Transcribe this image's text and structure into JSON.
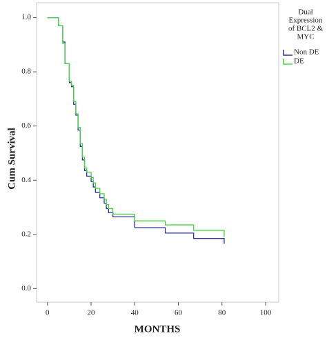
{
  "chart_data": {
    "type": "step",
    "y_label": "Cum Survival",
    "x_label": "MONTHS",
    "legend_title": [
      "Dual",
      "Expression",
      "of BCL2 &",
      "MYC"
    ],
    "xlim": [
      -5,
      106
    ],
    "ylim": [
      -0.05,
      1.055
    ],
    "xticks": [
      0,
      20,
      40,
      60,
      80,
      100
    ],
    "yticks": [
      {
        "value": 0,
        "label": "0.0"
      },
      0.2,
      0.4,
      0.6,
      0.8,
      {
        "value": 1,
        "label": "1.0"
      }
    ],
    "series": [
      {
        "name": "Non DE",
        "color": "#2e2ea6",
        "x": [
          0,
          5,
          7,
          8,
          10,
          11,
          12,
          13,
          14,
          15,
          16,
          17,
          18,
          20,
          21,
          22,
          24,
          26,
          27,
          28,
          30,
          40,
          54,
          67,
          81
        ],
        "values": [
          1.0,
          0.97,
          0.91,
          0.83,
          0.76,
          0.745,
          0.68,
          0.64,
          0.585,
          0.525,
          0.475,
          0.435,
          0.415,
          0.395,
          0.375,
          0.355,
          0.335,
          0.315,
          0.295,
          0.28,
          0.265,
          0.225,
          0.205,
          0.185,
          0.165
        ]
      },
      {
        "name": "DE",
        "color": "#46d246",
        "x": [
          0,
          4,
          5,
          7,
          8,
          10,
          11,
          12,
          13,
          14,
          15,
          16,
          17,
          18,
          20,
          21,
          22,
          24,
          26,
          27,
          28,
          30,
          40,
          54,
          67,
          81
        ],
        "values": [
          1.0,
          1.0,
          0.97,
          0.905,
          0.83,
          0.765,
          0.75,
          0.69,
          0.645,
          0.595,
          0.535,
          0.485,
          0.445,
          0.43,
          0.41,
          0.39,
          0.37,
          0.35,
          0.33,
          0.31,
          0.295,
          0.275,
          0.25,
          0.235,
          0.215,
          0.19
        ]
      }
    ]
  }
}
